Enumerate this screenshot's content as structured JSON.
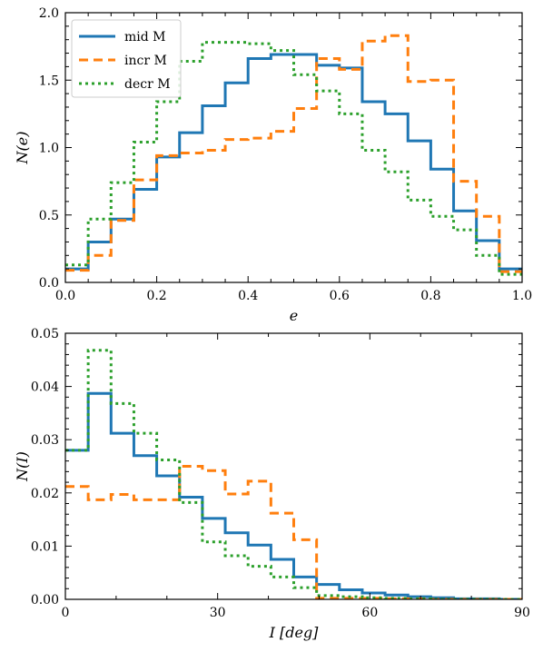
{
  "chart_data": [
    {
      "type": "line",
      "step": true,
      "xlabel": "e",
      "ylabel": "N(e)",
      "xlim": [
        0.0,
        1.0
      ],
      "ylim": [
        0.0,
        2.0
      ],
      "xticks": [
        0.0,
        0.2,
        0.4,
        0.6,
        0.8,
        1.0
      ],
      "xtick_labels": [
        "0.0",
        "0.2",
        "0.4",
        "0.6",
        "0.8",
        "1.0"
      ],
      "yticks": [
        0.0,
        0.5,
        1.0,
        1.5,
        2.0
      ],
      "ytick_labels": [
        "0.0",
        "0.5",
        "1.0",
        "1.5",
        "2.0"
      ],
      "legend": {
        "position": "top-left",
        "entries": [
          "mid M",
          "incr M",
          "decr M"
        ]
      },
      "bin_edges": [
        0.0,
        0.05,
        0.1,
        0.15,
        0.2,
        0.25,
        0.3,
        0.35,
        0.4,
        0.45,
        0.5,
        0.55,
        0.6,
        0.65,
        0.7,
        0.75,
        0.8,
        0.85,
        0.9,
        0.95,
        1.0
      ],
      "series": [
        {
          "name": "mid M",
          "color": "#1f77b4",
          "style": "solid",
          "values": [
            0.1,
            0.3,
            0.47,
            0.69,
            0.93,
            1.11,
            1.31,
            1.48,
            1.66,
            1.69,
            1.69,
            1.61,
            1.59,
            1.34,
            1.25,
            1.05,
            0.84,
            0.53,
            0.31,
            0.1
          ]
        },
        {
          "name": "incr M",
          "color": "#ff7f0e",
          "style": "dashed",
          "values": [
            0.09,
            0.2,
            0.46,
            0.76,
            0.94,
            0.96,
            0.98,
            1.06,
            1.07,
            1.12,
            1.29,
            1.66,
            1.58,
            1.79,
            1.83,
            1.49,
            1.5,
            0.75,
            0.49,
            0.08
          ]
        },
        {
          "name": "decr M",
          "color": "#2ca02c",
          "style": "dotted",
          "values": [
            0.13,
            0.47,
            0.74,
            1.04,
            1.34,
            1.64,
            1.78,
            1.78,
            1.77,
            1.72,
            1.54,
            1.42,
            1.25,
            0.98,
            0.82,
            0.61,
            0.49,
            0.39,
            0.2,
            0.06
          ]
        }
      ]
    },
    {
      "type": "line",
      "step": true,
      "xlabel": "I [deg]",
      "ylabel": "N(I)",
      "xlim": [
        0,
        90
      ],
      "ylim": [
        0.0,
        0.05
      ],
      "xticks": [
        0,
        30,
        60,
        90
      ],
      "xtick_labels": [
        "0",
        "30",
        "60",
        "90"
      ],
      "yticks": [
        0.0,
        0.01,
        0.02,
        0.03,
        0.04,
        0.05
      ],
      "ytick_labels": [
        "0.00",
        "0.01",
        "0.02",
        "0.03",
        "0.04",
        "0.05"
      ],
      "bin_edges": [
        0.0,
        4.5,
        9.0,
        13.5,
        18.0,
        22.5,
        27.0,
        31.5,
        36.0,
        40.5,
        45.0,
        49.5,
        54.0,
        58.5,
        63.0,
        67.5,
        72.0,
        76.5,
        81.0,
        85.5,
        90.0
      ],
      "series": [
        {
          "name": "mid M",
          "color": "#1f77b4",
          "style": "solid",
          "values": [
            0.028,
            0.0387,
            0.0312,
            0.027,
            0.0232,
            0.0192,
            0.0152,
            0.0125,
            0.0102,
            0.0075,
            0.0042,
            0.0028,
            0.0018,
            0.0012,
            0.0008,
            0.0005,
            0.0003,
            0.0001,
            0.0001,
            0.0
          ]
        },
        {
          "name": "incr M",
          "color": "#ff7f0e",
          "style": "dashed",
          "values": [
            0.0212,
            0.0187,
            0.0197,
            0.0187,
            0.0187,
            0.025,
            0.0242,
            0.0198,
            0.0222,
            0.0162,
            0.0112,
            0.0002,
            0.0002,
            0.0002,
            0.0001,
            0.0001,
            0.0,
            0.0,
            0.0,
            0.0
          ]
        },
        {
          "name": "decr M",
          "color": "#2ca02c",
          "style": "dotted",
          "values": [
            0.028,
            0.0468,
            0.0368,
            0.0312,
            0.0262,
            0.0182,
            0.0108,
            0.0082,
            0.0062,
            0.0042,
            0.0022,
            0.0007,
            0.0005,
            0.0003,
            0.0002,
            0.0001,
            0.0,
            0.0,
            0.0,
            0.0
          ]
        }
      ]
    }
  ]
}
